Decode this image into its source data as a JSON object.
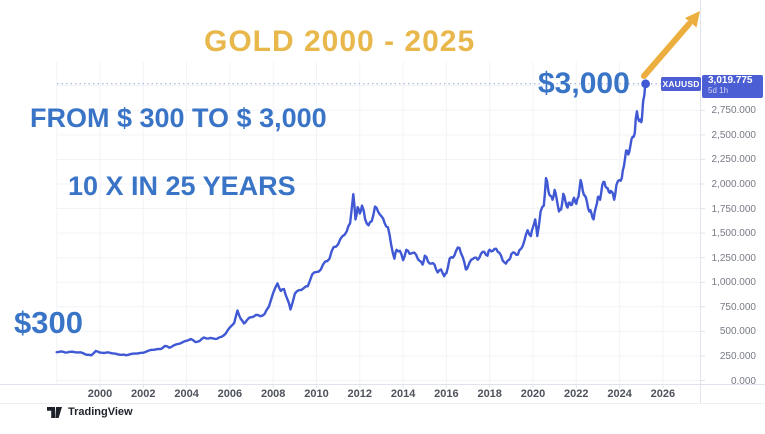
{
  "title": "GOLD 2000 - 2025",
  "annotations": {
    "line1": "FROM $ 300 TO $ 3,000",
    "line2": "10 X IN 25 YEARS",
    "start_label": "$300",
    "end_label": "$3,000"
  },
  "symbol_label": {
    "symbol": "XAUUSD",
    "price": "3,019.775",
    "timeframe": "5d 1h"
  },
  "watermark": "TradingView",
  "colors": {
    "title_gold": "#E8B84C",
    "arrow_gold": "#ECAF3F",
    "annotation_blue": "#3A74C6",
    "line_blue": "#4058D4",
    "tag_blue": "#4C5ED3",
    "dashed_blue": "#93A4D6",
    "grid": "#f2f3f7",
    "tick": "#e0e3eb"
  },
  "chart_data": {
    "type": "line",
    "title": "GOLD 2000 - 2025",
    "xlabel": "",
    "ylabel": "",
    "xlim": [
      1998,
      2026.6
    ],
    "ylim": [
      0,
      3100
    ],
    "grid": true,
    "x_grid_min": 1998,
    "x_ticks": [
      2000,
      2002,
      2004,
      2006,
      2008,
      2010,
      2012,
      2014,
      2016,
      2018,
      2020,
      2022,
      2024,
      2026
    ],
    "y_ticks": [
      2750,
      2500,
      2250,
      2000,
      1750,
      1500,
      1250,
      1000,
      750,
      500,
      250,
      0
    ],
    "y_grid_max": 3000,
    "current_price": 3019.775,
    "series": [
      {
        "name": "XAUUSD",
        "points": [
          [
            1998.0,
            288
          ],
          [
            1998.2,
            296
          ],
          [
            1998.4,
            284
          ],
          [
            1998.6,
            292
          ],
          [
            1998.8,
            290
          ],
          [
            1999.0,
            286
          ],
          [
            1999.2,
            280
          ],
          [
            1999.4,
            262
          ],
          [
            1999.6,
            256
          ],
          [
            1999.8,
            300
          ],
          [
            2000.0,
            284
          ],
          [
            2000.2,
            280
          ],
          [
            2000.4,
            286
          ],
          [
            2000.6,
            276
          ],
          [
            2000.8,
            268
          ],
          [
            2001.0,
            262
          ],
          [
            2001.2,
            258
          ],
          [
            2001.4,
            268
          ],
          [
            2001.6,
            274
          ],
          [
            2001.8,
            278
          ],
          [
            2002.0,
            282
          ],
          [
            2002.2,
            300
          ],
          [
            2002.4,
            312
          ],
          [
            2002.6,
            318
          ],
          [
            2002.8,
            320
          ],
          [
            2003.0,
            352
          ],
          [
            2003.2,
            334
          ],
          [
            2003.4,
            356
          ],
          [
            2003.6,
            372
          ],
          [
            2003.8,
            388
          ],
          [
            2004.0,
            404
          ],
          [
            2004.2,
            422
          ],
          [
            2004.4,
            392
          ],
          [
            2004.6,
            402
          ],
          [
            2004.8,
            438
          ],
          [
            2005.0,
            426
          ],
          [
            2005.2,
            430
          ],
          [
            2005.4,
            424
          ],
          [
            2005.6,
            444
          ],
          [
            2005.8,
            476
          ],
          [
            2006.0,
            540
          ],
          [
            2006.2,
            586
          ],
          [
            2006.35,
            712
          ],
          [
            2006.5,
            628
          ],
          [
            2006.65,
            580
          ],
          [
            2006.8,
            618
          ],
          [
            2007.0,
            644
          ],
          [
            2007.2,
            668
          ],
          [
            2007.4,
            654
          ],
          [
            2007.6,
            676
          ],
          [
            2007.8,
            752
          ],
          [
            2008.0,
            892
          ],
          [
            2008.2,
            988
          ],
          [
            2008.35,
            912
          ],
          [
            2008.5,
            930
          ],
          [
            2008.65,
            830
          ],
          [
            2008.8,
            724
          ],
          [
            2009.0,
            884
          ],
          [
            2009.2,
            920
          ],
          [
            2009.4,
            938
          ],
          [
            2009.6,
            960
          ],
          [
            2009.8,
            1080
          ],
          [
            2010.0,
            1104
          ],
          [
            2010.2,
            1130
          ],
          [
            2010.4,
            1210
          ],
          [
            2010.6,
            1240
          ],
          [
            2010.8,
            1360
          ],
          [
            2011.0,
            1386
          ],
          [
            2011.2,
            1470
          ],
          [
            2011.4,
            1520
          ],
          [
            2011.55,
            1600
          ],
          [
            2011.7,
            1896
          ],
          [
            2011.8,
            1640
          ],
          [
            2011.9,
            1764
          ],
          [
            2012.0,
            1700
          ],
          [
            2012.1,
            1780
          ],
          [
            2012.25,
            1640
          ],
          [
            2012.4,
            1580
          ],
          [
            2012.55,
            1620
          ],
          [
            2012.7,
            1770
          ],
          [
            2012.85,
            1716
          ],
          [
            2013.0,
            1672
          ],
          [
            2013.15,
            1600
          ],
          [
            2013.3,
            1560
          ],
          [
            2013.45,
            1380
          ],
          [
            2013.6,
            1240
          ],
          [
            2013.7,
            1330
          ],
          [
            2013.85,
            1320
          ],
          [
            2014.0,
            1224
          ],
          [
            2014.15,
            1330
          ],
          [
            2014.3,
            1290
          ],
          [
            2014.45,
            1300
          ],
          [
            2014.6,
            1280
          ],
          [
            2014.75,
            1220
          ],
          [
            2014.9,
            1180
          ],
          [
            2015.0,
            1270
          ],
          [
            2015.15,
            1210
          ],
          [
            2015.3,
            1190
          ],
          [
            2015.45,
            1180
          ],
          [
            2015.6,
            1100
          ],
          [
            2015.75,
            1130
          ],
          [
            2015.9,
            1062
          ],
          [
            2016.0,
            1092
          ],
          [
            2016.15,
            1240
          ],
          [
            2016.3,
            1250
          ],
          [
            2016.45,
            1320
          ],
          [
            2016.6,
            1350
          ],
          [
            2016.75,
            1260
          ],
          [
            2016.9,
            1130
          ],
          [
            2017.0,
            1160
          ],
          [
            2017.15,
            1230
          ],
          [
            2017.3,
            1250
          ],
          [
            2017.45,
            1230
          ],
          [
            2017.6,
            1290
          ],
          [
            2017.75,
            1310
          ],
          [
            2017.9,
            1270
          ],
          [
            2018.0,
            1330
          ],
          [
            2018.15,
            1320
          ],
          [
            2018.3,
            1340
          ],
          [
            2018.45,
            1300
          ],
          [
            2018.6,
            1220
          ],
          [
            2018.75,
            1190
          ],
          [
            2018.9,
            1230
          ],
          [
            2019.0,
            1286
          ],
          [
            2019.15,
            1300
          ],
          [
            2019.3,
            1280
          ],
          [
            2019.45,
            1340
          ],
          [
            2019.6,
            1420
          ],
          [
            2019.75,
            1530
          ],
          [
            2019.9,
            1470
          ],
          [
            2020.0,
            1560
          ],
          [
            2020.1,
            1640
          ],
          [
            2020.2,
            1470
          ],
          [
            2020.35,
            1720
          ],
          [
            2020.5,
            1780
          ],
          [
            2020.6,
            2060
          ],
          [
            2020.7,
            1940
          ],
          [
            2020.8,
            1880
          ],
          [
            2020.9,
            1840
          ],
          [
            2021.0,
            1940
          ],
          [
            2021.1,
            1840
          ],
          [
            2021.2,
            1720
          ],
          [
            2021.3,
            1740
          ],
          [
            2021.4,
            1900
          ],
          [
            2021.5,
            1820
          ],
          [
            2021.6,
            1760
          ],
          [
            2021.7,
            1810
          ],
          [
            2021.8,
            1790
          ],
          [
            2021.9,
            1860
          ],
          [
            2022.0,
            1800
          ],
          [
            2022.1,
            1870
          ],
          [
            2022.2,
            2040
          ],
          [
            2022.3,
            1930
          ],
          [
            2022.4,
            1880
          ],
          [
            2022.5,
            1810
          ],
          [
            2022.6,
            1720
          ],
          [
            2022.7,
            1700
          ],
          [
            2022.8,
            1640
          ],
          [
            2022.9,
            1760
          ],
          [
            2023.0,
            1870
          ],
          [
            2023.1,
            1840
          ],
          [
            2023.2,
            1990
          ],
          [
            2023.3,
            2020
          ],
          [
            2023.4,
            1960
          ],
          [
            2023.5,
            1920
          ],
          [
            2023.6,
            1930
          ],
          [
            2023.75,
            1840
          ],
          [
            2023.85,
            1990
          ],
          [
            2024.0,
            2040
          ],
          [
            2024.1,
            2060
          ],
          [
            2024.2,
            2180
          ],
          [
            2024.3,
            2340
          ],
          [
            2024.4,
            2300
          ],
          [
            2024.5,
            2390
          ],
          [
            2024.6,
            2480
          ],
          [
            2024.7,
            2520
          ],
          [
            2024.8,
            2740
          ],
          [
            2024.9,
            2640
          ],
          [
            2025.0,
            2630
          ],
          [
            2025.05,
            2720
          ],
          [
            2025.1,
            2860
          ],
          [
            2025.15,
            2920
          ],
          [
            2025.2,
            3019.775
          ]
        ]
      }
    ],
    "legend": [],
    "annotations": [
      "$300 start",
      "$3,000 end",
      "up-right arrow"
    ]
  }
}
